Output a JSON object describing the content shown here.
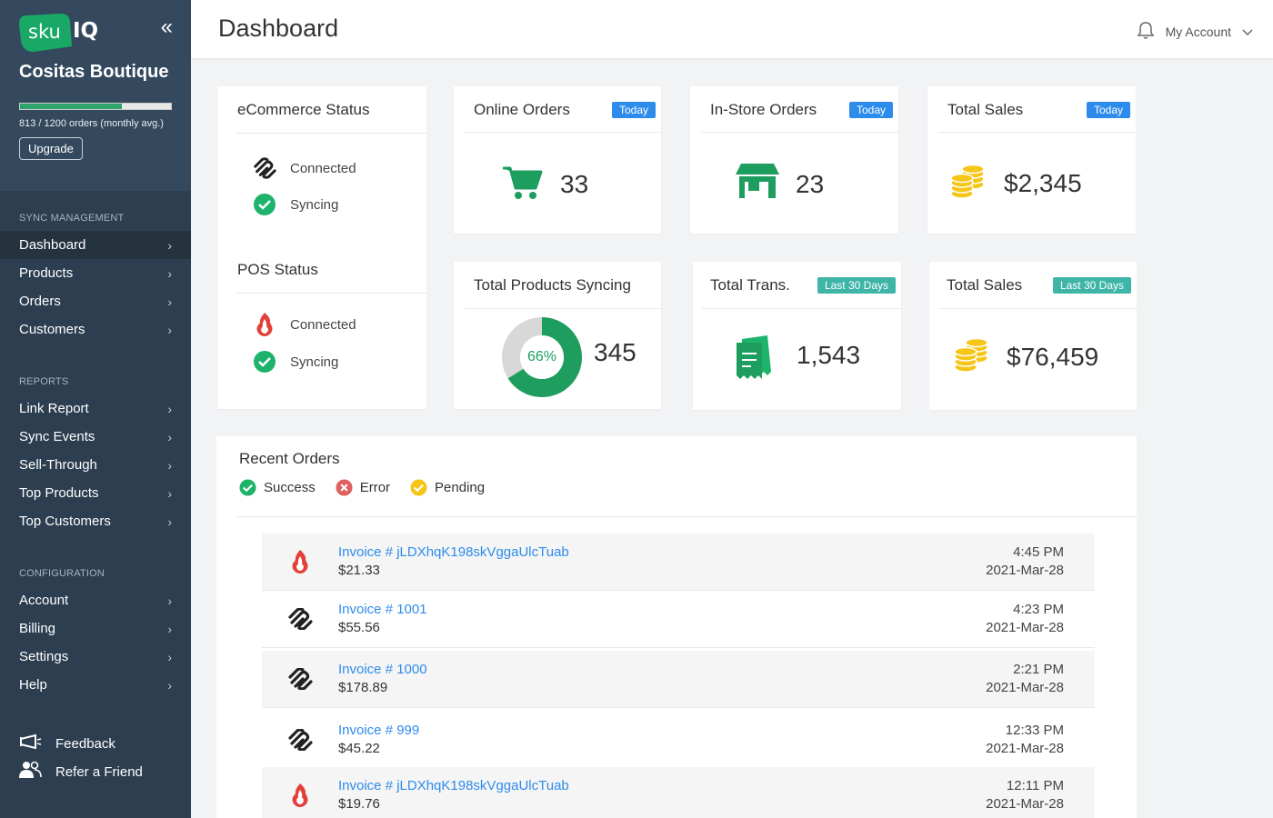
{
  "sidebar": {
    "logo_sku": "sku",
    "logo_iq": "IQ",
    "store_name": "Cositas Boutique",
    "quota_fraction": 0.6775,
    "quota_text": "813 / 1200 orders (monthly avg.)",
    "upgrade_label": "Upgrade",
    "sections": {
      "sync": "SYNC MANAGEMENT",
      "reports": "REPORTS",
      "config": "CONFIGURATION"
    },
    "sync_items": [
      "Dashboard",
      "Products",
      "Orders",
      "Customers"
    ],
    "report_items": [
      "Link Report",
      "Sync Events",
      "Sell-Through",
      "Top Products",
      "Top Customers"
    ],
    "config_items": [
      "Account",
      "Billing",
      "Settings",
      "Help"
    ],
    "feedback": "Feedback",
    "refer": "Refer a Friend"
  },
  "header": {
    "title": "Dashboard",
    "account": "My Account"
  },
  "cards": {
    "ecommerce": {
      "title": "eCommerce Status",
      "connected": "Connected",
      "syncing": "Syncing"
    },
    "pos": {
      "title": "POS Status",
      "connected": "Connected",
      "syncing": "Syncing"
    },
    "online_orders": {
      "title": "Online Orders",
      "badge": "Today",
      "value": "33"
    },
    "instore_orders": {
      "title": "In-Store Orders",
      "badge": "Today",
      "value": "23"
    },
    "total_sales_today": {
      "title": "Total Sales",
      "badge": "Today",
      "value": "$2,345"
    },
    "products_syncing": {
      "title": "Total Products Syncing",
      "percent_label": "66%",
      "percent": 0.66,
      "value": "345"
    },
    "total_trans": {
      "title": "Total Trans.",
      "badge": "Last 30 Days",
      "value": "1,543"
    },
    "total_sales_30": {
      "title": "Total Sales",
      "badge": "Last 30 Days",
      "value": "$76,459"
    }
  },
  "recent_orders": {
    "title": "Recent Orders",
    "legend": {
      "success": "Success",
      "error": "Error",
      "pending": "Pending"
    },
    "rows": [
      {
        "source": "pos",
        "invoice": "Invoice # jLDXhqK198skVggaUlcTuab",
        "amount": "$21.33",
        "time": "4:45 PM",
        "date": "2021-Mar-28"
      },
      {
        "source": "ecommerce",
        "invoice": "Invoice # 1001",
        "amount": "$55.56",
        "time": "4:23 PM",
        "date": "2021-Mar-28"
      },
      {
        "source": "ecommerce",
        "invoice": "Invoice # 1000",
        "amount": "$178.89",
        "time": "2:21 PM",
        "date": "2021-Mar-28"
      },
      {
        "source": "ecommerce",
        "invoice": "Invoice # 999",
        "amount": "$45.22",
        "time": "12:33 PM",
        "date": "2021-Mar-28"
      },
      {
        "source": "pos",
        "invoice": "Invoice # jLDXhqK198skVggaUlcTuab",
        "amount": "$19.76",
        "time": "12:11 PM",
        "date": "2021-Mar-28"
      }
    ]
  },
  "colors": {
    "sidebar_bg": "#2c3e50",
    "accent_green": "#1e9e5e",
    "link_blue": "#2d8ceb",
    "badge_teal": "#3fb5a8",
    "coin_yellow": "#f5c518",
    "pos_red": "#e2403a"
  }
}
